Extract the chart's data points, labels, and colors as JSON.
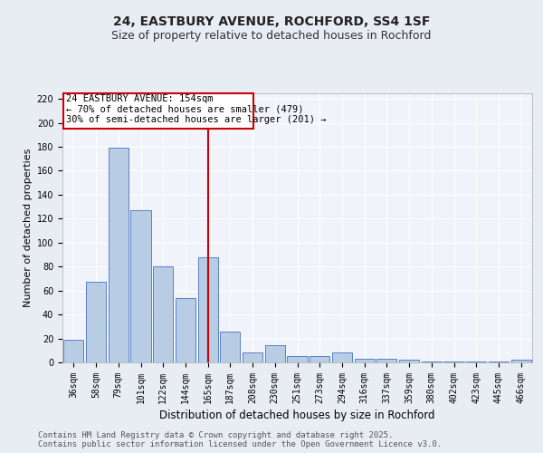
{
  "title": "24, EASTBURY AVENUE, ROCHFORD, SS4 1SF",
  "subtitle": "Size of property relative to detached houses in Rochford",
  "xlabel": "Distribution of detached houses by size in Rochford",
  "ylabel": "Number of detached properties",
  "categories": [
    "36sqm",
    "58sqm",
    "79sqm",
    "101sqm",
    "122sqm",
    "144sqm",
    "165sqm",
    "187sqm",
    "208sqm",
    "230sqm",
    "251sqm",
    "273sqm",
    "294sqm",
    "316sqm",
    "337sqm",
    "359sqm",
    "380sqm",
    "402sqm",
    "423sqm",
    "445sqm",
    "466sqm"
  ],
  "values": [
    19,
    67,
    179,
    127,
    80,
    54,
    88,
    26,
    8,
    14,
    5,
    5,
    8,
    3,
    3,
    2,
    1,
    1,
    1,
    1,
    2
  ],
  "bar_color": "#b8cce4",
  "bar_edge_color": "#4472c4",
  "vline_x": 6.0,
  "vline_color": "#cc0000",
  "annotation_text": "24 EASTBURY AVENUE: 154sqm\n← 70% of detached houses are smaller (479)\n30% of semi-detached houses are larger (201) →",
  "annotation_box_color": "#ffffff",
  "annotation_box_edge_color": "#cc0000",
  "ylim": [
    0,
    225
  ],
  "yticks": [
    0,
    20,
    40,
    60,
    80,
    100,
    120,
    140,
    160,
    180,
    200,
    220
  ],
  "bg_color": "#e8edf4",
  "plot_bg_color": "#f0f4fa",
  "grid_color": "#ffffff",
  "footer_text": "Contains HM Land Registry data © Crown copyright and database right 2025.\nContains public sector information licensed under the Open Government Licence v3.0.",
  "title_fontsize": 10,
  "subtitle_fontsize": 9,
  "ylabel_fontsize": 8,
  "xlabel_fontsize": 8.5,
  "tick_fontsize": 7,
  "annotation_fontsize": 7.5,
  "footer_fontsize": 6.5
}
